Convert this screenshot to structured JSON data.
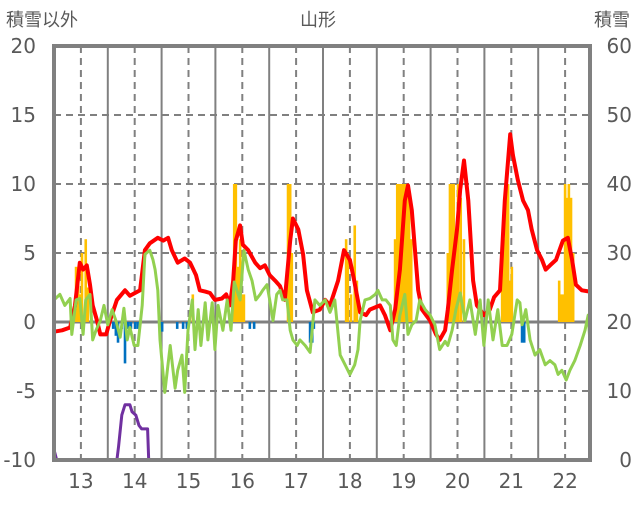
{
  "chart_data": {
    "type": "line",
    "title": "山形",
    "ylabel_left": "積雪以外",
    "ylabel_right": "積雪",
    "ylim_left": [
      -10,
      20
    ],
    "ylim_right": [
      0,
      60
    ],
    "yticks_left": [
      "20",
      "15",
      "10",
      "5",
      "0",
      "-5",
      "-10"
    ],
    "yticks_left_values": [
      20,
      15,
      10,
      5,
      0,
      -5,
      -10
    ],
    "yticks_right": [
      "60",
      "50",
      "40",
      "30",
      "20",
      "10",
      "0"
    ],
    "yticks_right_values": [
      60,
      50,
      40,
      30,
      20,
      10,
      0
    ],
    "xlim": [
      13,
      22.96
    ],
    "xticks": [
      "13",
      "14",
      "15",
      "16",
      "17",
      "18",
      "19",
      "20",
      "21",
      "22"
    ],
    "grid": true,
    "colors": {
      "red": "#FF0000",
      "green": "#92D050",
      "yellow": "#FFC000",
      "blue": "#0070C0",
      "purple": "#7030A0",
      "axis": "#808080"
    },
    "series": [
      {
        "name": "red-line",
        "axis": "left",
        "kind": "line",
        "color": "#FF0000",
        "x": [
          13.0,
          13.15,
          13.3,
          13.39,
          13.48,
          13.54,
          13.61,
          13.67,
          13.72,
          13.8,
          13.86,
          13.97,
          14.04,
          14.17,
          14.32,
          14.41,
          14.6,
          14.69,
          14.78,
          14.93,
          15.03,
          15.12,
          15.19,
          15.3,
          15.43,
          15.53,
          15.64,
          15.71,
          15.81,
          15.9,
          15.99,
          16.12,
          16.2,
          16.27,
          16.33,
          16.38,
          16.46,
          16.51,
          16.61,
          16.74,
          16.83,
          16.92,
          17.01,
          17.11,
          17.2,
          17.29,
          17.39,
          17.44,
          17.54,
          17.63,
          17.7,
          17.81,
          17.94,
          18.04,
          18.13,
          18.28,
          18.39,
          18.5,
          18.58,
          18.69,
          18.8,
          18.87,
          19.06,
          19.15,
          19.25,
          19.34,
          19.43,
          19.52,
          19.58,
          19.65,
          19.77,
          19.84,
          19.99,
          20.1,
          20.17,
          20.27,
          20.32,
          20.4,
          20.49,
          20.55,
          20.62,
          20.7,
          20.79,
          20.86,
          20.92,
          20.99,
          21.1,
          21.18,
          21.29,
          21.38,
          21.48,
          21.53,
          21.62,
          21.72,
          21.81,
          21.88,
          21.98,
          22.07,
          22.14,
          22.22,
          22.33,
          22.46,
          22.55,
          22.63,
          22.7,
          22.81,
          22.96
        ],
        "y": [
          -0.7,
          -0.6,
          -0.4,
          1.2,
          4.3,
          3.8,
          4.1,
          2.7,
          1.2,
          0.1,
          -0.9,
          -0.9,
          0.1,
          1.6,
          2.3,
          1.9,
          2.3,
          5.2,
          5.7,
          6.1,
          5.9,
          6.1,
          5.2,
          4.3,
          4.6,
          4.3,
          3.4,
          2.3,
          2.2,
          2.1,
          1.6,
          1.7,
          2.0,
          1.2,
          3.0,
          5.9,
          7.0,
          5.6,
          5.2,
          4.3,
          3.9,
          4.1,
          3.4,
          3.0,
          2.6,
          1.6,
          5.9,
          7.5,
          6.7,
          4.9,
          2.3,
          0.7,
          0.9,
          1.6,
          1.2,
          3.0,
          5.2,
          4.5,
          3.0,
          0.7,
          0.5,
          0.9,
          1.2,
          0.5,
          -0.6,
          0.9,
          3.8,
          8.8,
          9.9,
          8.1,
          2.3,
          0.9,
          0.1,
          -0.9,
          -1.3,
          -0.6,
          0.9,
          3.8,
          6.7,
          9.6,
          11.7,
          8.8,
          3.0,
          1.2,
          0.9,
          0.5,
          0.9,
          1.8,
          2.3,
          8.8,
          13.6,
          12.1,
          10.3,
          8.8,
          8.1,
          6.7,
          5.2,
          4.5,
          3.8,
          4.1,
          4.5,
          5.9,
          6.1,
          4.5,
          2.7,
          2.3,
          2.2
        ]
      },
      {
        "name": "green-line",
        "axis": "left",
        "kind": "line",
        "color": "#92D050",
        "x": [
          13.0,
          13.11,
          13.2,
          13.3,
          13.33,
          13.41,
          13.48,
          13.54,
          13.59,
          13.67,
          13.72,
          13.78,
          13.86,
          13.93,
          14.0,
          14.08,
          14.15,
          14.23,
          14.3,
          14.36,
          14.41,
          14.49,
          14.56,
          14.64,
          14.69,
          14.78,
          14.84,
          14.88,
          14.93,
          14.97,
          15.06,
          15.16,
          15.25,
          15.3,
          15.38,
          15.43,
          15.49,
          15.57,
          15.62,
          15.68,
          15.73,
          15.81,
          15.86,
          15.94,
          15.99,
          16.05,
          16.14,
          16.22,
          16.29,
          16.35,
          16.4,
          16.46,
          16.53,
          16.61,
          16.68,
          16.75,
          16.83,
          16.88,
          16.96,
          17.01,
          17.07,
          17.14,
          17.2,
          17.25,
          17.33,
          17.39,
          17.44,
          17.52,
          17.57,
          17.67,
          17.76,
          17.85,
          17.94,
          18.04,
          18.13,
          18.22,
          18.32,
          18.41,
          18.5,
          18.59,
          18.65,
          18.69,
          18.78,
          18.87,
          18.97,
          19.02,
          19.1,
          19.17,
          19.25,
          19.3,
          19.36,
          19.43,
          19.52,
          19.58,
          19.65,
          19.73,
          19.8,
          19.9,
          19.99,
          20.08,
          20.17,
          20.27,
          20.32,
          20.4,
          20.47,
          20.55,
          20.64,
          20.73,
          20.83,
          20.92,
          20.99,
          21.07,
          21.16,
          21.25,
          21.33,
          21.42,
          21.51,
          21.61,
          21.66,
          21.7,
          21.77,
          21.85,
          21.94,
          22.03,
          22.13,
          22.22,
          22.31,
          22.37,
          22.44,
          22.52,
          22.59,
          22.68,
          22.78,
          22.87,
          22.93,
          22.96
        ],
        "y": [
          1.6,
          2.0,
          1.2,
          1.7,
          -0.9,
          1.6,
          1.7,
          -0.9,
          1.6,
          2.0,
          -1.3,
          -0.6,
          0.1,
          1.2,
          -0.2,
          0.9,
          0.1,
          -1.1,
          1.0,
          -1.3,
          -0.4,
          -1.7,
          -1.7,
          1.2,
          4.9,
          5.2,
          4.5,
          3.8,
          2.3,
          -1.3,
          -5.1,
          -1.7,
          -4.8,
          -3.5,
          -2.4,
          -5.1,
          -0.6,
          1.6,
          -2.0,
          0.9,
          -1.7,
          1.4,
          -1.3,
          1.4,
          -2.0,
          1.2,
          -0.6,
          1.6,
          -0.6,
          2.9,
          2.3,
          1.6,
          5.2,
          3.8,
          3.0,
          1.6,
          2.0,
          2.3,
          2.7,
          1.6,
          0.1,
          2.0,
          2.3,
          1.6,
          1.6,
          -0.6,
          -1.3,
          -1.7,
          -1.3,
          -1.7,
          -2.2,
          1.6,
          1.2,
          1.6,
          0.7,
          1.6,
          -2.4,
          -3.1,
          -3.8,
          -3.1,
          -2.0,
          0.1,
          1.6,
          1.7,
          2.0,
          2.3,
          1.6,
          1.6,
          1.2,
          -1.3,
          -1.7,
          0.5,
          2.0,
          -0.9,
          -0.2,
          0.1,
          1.6,
          0.9,
          0.5,
          -0.2,
          -2.0,
          -1.4,
          -1.7,
          -0.6,
          0.9,
          2.1,
          0.1,
          1.6,
          -0.9,
          1.6,
          -1.7,
          1.6,
          -1.3,
          0.9,
          -1.7,
          -1.7,
          -0.9,
          1.6,
          1.4,
          -0.2,
          0.9,
          -1.3,
          -2.4,
          -2.0,
          -3.1,
          -2.8,
          -3.1,
          -3.8,
          -3.5,
          -4.2,
          -3.5,
          -2.8,
          -1.7,
          -0.6,
          0.5,
          -1.3
        ]
      },
      {
        "name": "yellow-bars",
        "axis": "left",
        "kind": "bar",
        "color": "#FFC000",
        "x": [
          13.41,
          13.45,
          13.48,
          13.52,
          13.59,
          13.63,
          15.58,
          16.35,
          16.38,
          16.42,
          16.46,
          16.49,
          16.53,
          17.35,
          17.39,
          17.42,
          18.43,
          18.46,
          18.52,
          18.59,
          18.63,
          19.34,
          19.38,
          19.41,
          19.45,
          19.49,
          19.52,
          19.56,
          19.6,
          19.64,
          20.32,
          20.36,
          20.4,
          20.43,
          20.47,
          20.51,
          20.56,
          20.62,
          21.33,
          21.36,
          21.4,
          21.44,
          21.48,
          21.51,
          22.39,
          22.42,
          22.46,
          22.5,
          22.53,
          22.57,
          22.61,
          22.65
        ],
        "y": [
          4,
          3.5,
          2,
          5,
          6,
          2.5,
          2,
          10,
          10,
          4,
          6,
          2,
          2,
          10,
          10,
          5,
          6,
          5,
          2,
          7,
          3,
          6,
          10,
          10,
          10,
          10,
          10,
          10,
          9,
          6,
          5,
          10,
          10,
          10,
          6,
          10,
          9,
          6,
          4,
          6,
          10,
          10,
          3,
          4,
          3,
          2,
          2,
          10,
          9,
          10,
          9,
          5
        ]
      },
      {
        "name": "blue-bars",
        "axis": "left",
        "kind": "bar",
        "color": "#0070C0",
        "x": [
          14.1,
          14.15,
          14.19,
          14.26,
          14.32,
          14.38,
          14.43,
          14.51,
          14.56,
          14.97,
          15.01,
          15.29,
          15.4,
          15.47,
          16.64,
          16.72,
          17.76,
          17.8,
          17.83,
          21.7,
          21.74
        ],
        "y": [
          -0.5,
          -1,
          -1.5,
          -0.5,
          -3,
          -0.5,
          -0.5,
          -0.5,
          -0.5,
          -0.7,
          -0.7,
          -0.5,
          -0.5,
          -0.5,
          -0.5,
          -0.5,
          -1.5,
          -1.5,
          -0.5,
          -1.5,
          -1.5
        ]
      },
      {
        "name": "purple-line",
        "axis": "right",
        "kind": "line",
        "color": "#7030A0",
        "x": [
          13.0,
          13.05,
          14.17,
          14.2,
          14.26,
          14.32,
          14.41,
          14.45,
          14.52,
          14.58,
          14.63,
          14.74,
          14.76,
          22.96
        ],
        "y": [
          1.5,
          0,
          0,
          2,
          6.5,
          8,
          8,
          7,
          6.5,
          5,
          4.5,
          4.5,
          0,
          0
        ]
      }
    ]
  }
}
